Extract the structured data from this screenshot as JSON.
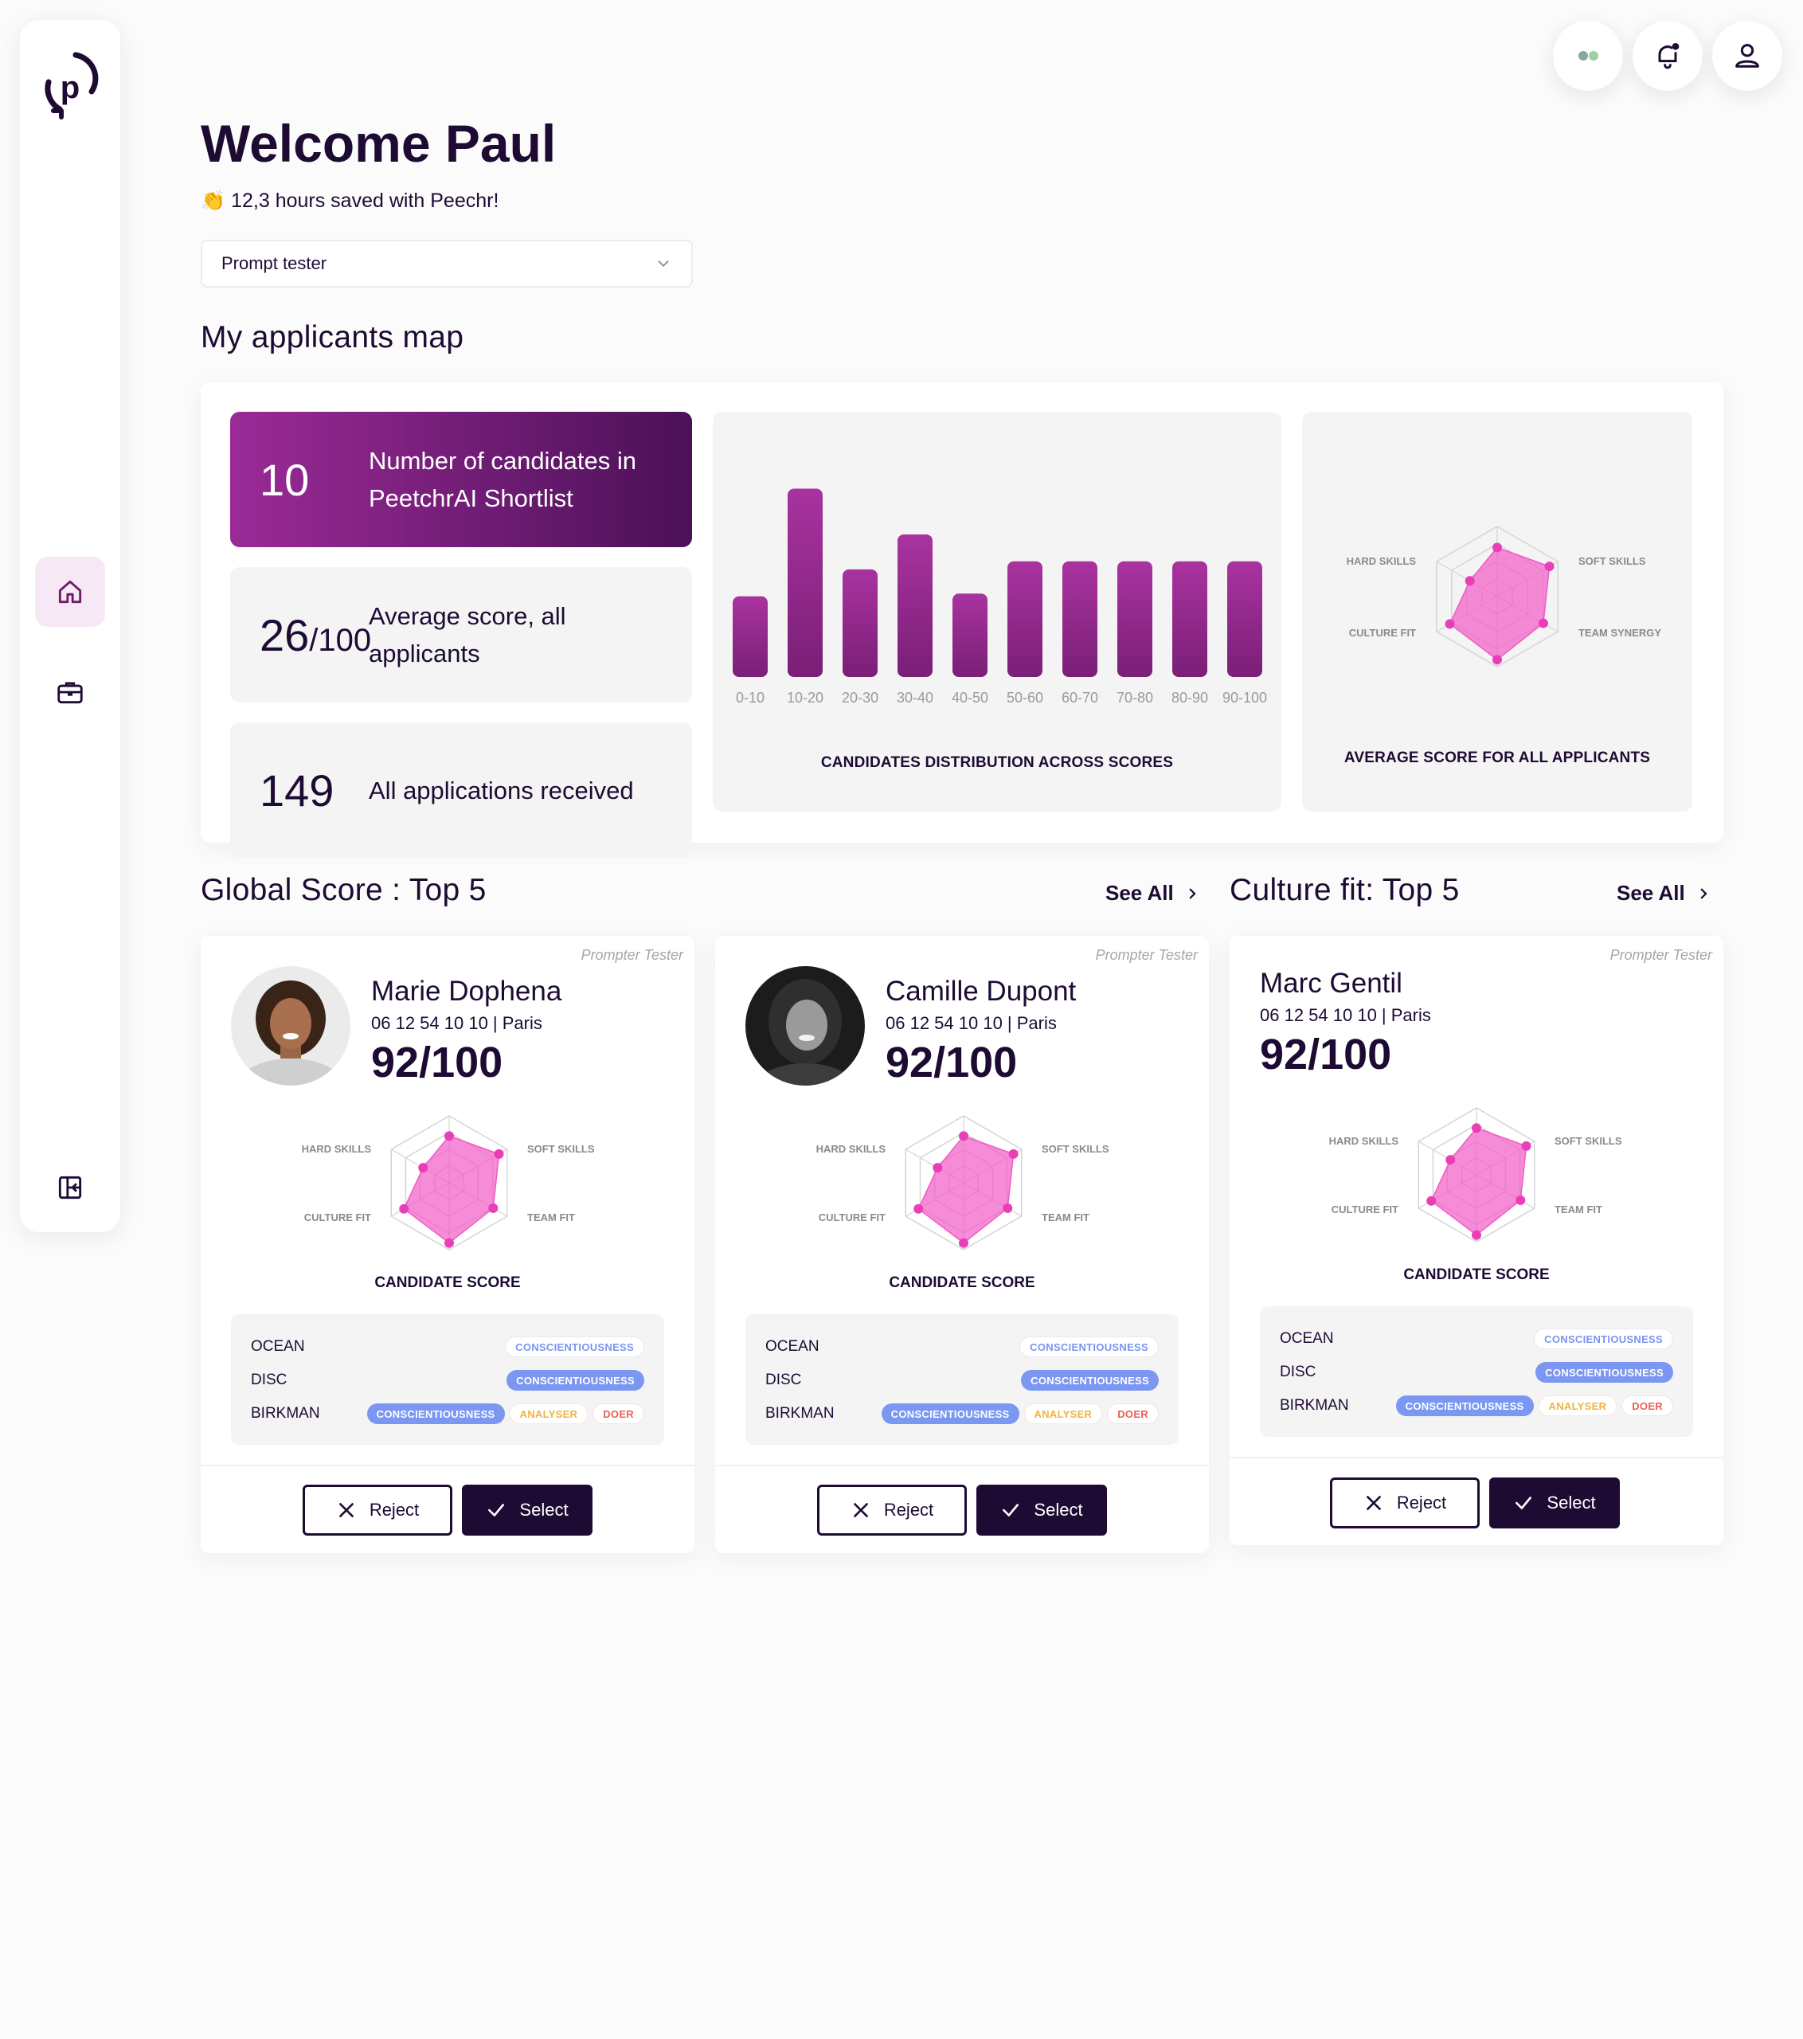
{
  "header": {
    "welcome": "Welcome Paul",
    "saved_emoji": "👏",
    "saved": "12,3 hours saved with Peechr!",
    "dropdown_value": "Prompt tester"
  },
  "sections": {
    "map_title": "My applicants map",
    "global_title": "Global Score : Top 5",
    "culture_title": "Culture fit: Top 5",
    "see_all": "See All"
  },
  "stats": [
    {
      "num": "10",
      "suffix": "",
      "desc": "Number of candidates in PeetchrAI Shortlist"
    },
    {
      "num": "26",
      "suffix": "/100",
      "desc": "Average score, all applicants"
    },
    {
      "num": "149",
      "suffix": "",
      "desc": "All applications received"
    }
  ],
  "chart_data": [
    {
      "type": "bar",
      "title": "CANDIDATES DISTRIBUTION ACROSS SCORES",
      "categories": [
        "0-10",
        "10-20",
        "20-30",
        "30-40",
        "40-50",
        "50-60",
        "60-70",
        "70-80",
        "80-90",
        "90-100"
      ],
      "values": [
        3,
        7,
        4,
        5.3,
        3.1,
        4.3,
        4.3,
        4.3,
        4.3,
        4.3
      ],
      "ylim": [
        0,
        7.4
      ],
      "grid": false,
      "color": "#8f2a8c"
    },
    {
      "type": "radar",
      "title": "AVERAGE SCORE FOR ALL APPLICANTS",
      "axes": [
        "HARD SKILLS",
        "SOFT SKILLS",
        "TEAM SYNERGY",
        "CULTURE FIT"
      ],
      "color": "#f064c8"
    }
  ],
  "cards": [
    {
      "tag": "Prompter Tester",
      "name": "Marie Dophena",
      "phone": "06 12 54 10 10 | Paris",
      "score": "92/100",
      "radar_axes": [
        "HARD SKILLS",
        "SOFT SKILLS",
        "TEAM FIT",
        "CULTURE FIT"
      ],
      "score_label": "CANDIDATE SCORE",
      "traits": {
        "ocean": "OCEAN",
        "disc": "DISC",
        "birkman": "BIRKMAN"
      },
      "pills": {
        "c": "CONSCIENTIOUSNESS",
        "a": "ANALYSER",
        "d": "DOER"
      },
      "reject": "Reject",
      "select": "Select"
    },
    {
      "tag": "Prompter Tester",
      "name": "Camille Dupont",
      "phone": "06 12 54 10 10 | Paris",
      "score": "92/100",
      "radar_axes": [
        "HARD SKILLS",
        "SOFT SKILLS",
        "TEAM FIT",
        "CULTURE FIT"
      ],
      "score_label": "CANDIDATE SCORE",
      "traits": {
        "ocean": "OCEAN",
        "disc": "DISC",
        "birkman": "BIRKMAN"
      },
      "pills": {
        "c": "CONSCIENTIOUSNESS",
        "a": "ANALYSER",
        "d": "DOER"
      },
      "reject": "Reject",
      "select": "Select"
    },
    {
      "tag": "Prompter Tester",
      "name": "Marc Gentil",
      "phone": "06 12 54 10 10 | Paris",
      "score": "92/100",
      "radar_axes": [
        "HARD SKILLS",
        "SOFT SKILLS",
        "TEAM FIT",
        "CULTURE FIT"
      ],
      "score_label": "CANDIDATE SCORE",
      "traits": {
        "ocean": "OCEAN",
        "disc": "DISC",
        "birkman": "BIRKMAN"
      },
      "pills": {
        "c": "CONSCIENTIOUSNESS",
        "a": "ANALYSER",
        "d": "DOER"
      },
      "reject": "Reject",
      "select": "Select"
    }
  ],
  "icons": {
    "logo": "peechr-logo",
    "nav": [
      "home-icon",
      "briefcase-icon",
      "layout-icon"
    ],
    "top": [
      "status-dots-icon",
      "notification-bell-icon",
      "user-icon"
    ]
  }
}
